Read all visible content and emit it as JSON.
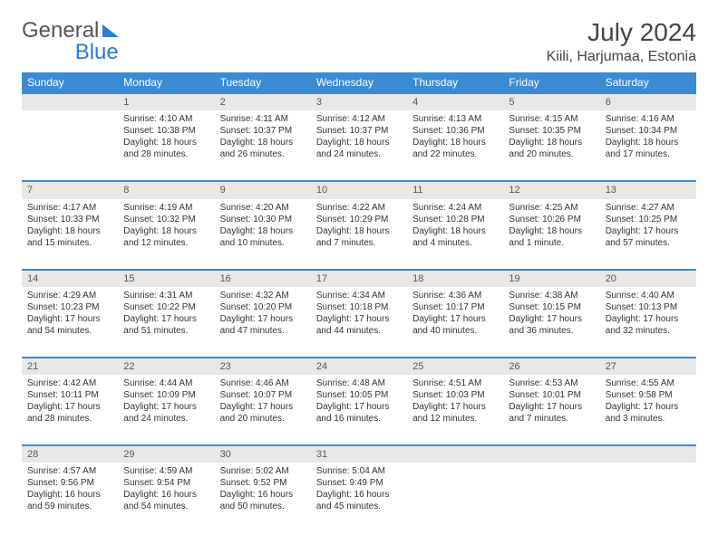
{
  "logo": {
    "part1": "General",
    "part2": "Blue"
  },
  "title": "July 2024",
  "location": "Kiili, Harjumaa, Estonia",
  "day_headers": [
    "Sunday",
    "Monday",
    "Tuesday",
    "Wednesday",
    "Thursday",
    "Friday",
    "Saturday"
  ],
  "colors": {
    "header_bg": "#3b8bd4",
    "header_text": "#ffffff",
    "daynum_bg": "#e8e8e8",
    "border_top": "#3b8bd4",
    "text": "#333333",
    "logo_gray": "#555555",
    "logo_blue": "#2b7cd3"
  },
  "typography": {
    "month_title_size": 28,
    "location_size": 16,
    "header_size": 12,
    "daynum_size": 11,
    "cell_size": 10
  },
  "weeks": [
    {
      "nums": [
        "",
        "1",
        "2",
        "3",
        "4",
        "5",
        "6"
      ],
      "cells": [
        null,
        {
          "sunrise": "Sunrise: 4:10 AM",
          "sunset": "Sunset: 10:38 PM",
          "day1": "Daylight: 18 hours",
          "day2": "and 28 minutes."
        },
        {
          "sunrise": "Sunrise: 4:11 AM",
          "sunset": "Sunset: 10:37 PM",
          "day1": "Daylight: 18 hours",
          "day2": "and 26 minutes."
        },
        {
          "sunrise": "Sunrise: 4:12 AM",
          "sunset": "Sunset: 10:37 PM",
          "day1": "Daylight: 18 hours",
          "day2": "and 24 minutes."
        },
        {
          "sunrise": "Sunrise: 4:13 AM",
          "sunset": "Sunset: 10:36 PM",
          "day1": "Daylight: 18 hours",
          "day2": "and 22 minutes."
        },
        {
          "sunrise": "Sunrise: 4:15 AM",
          "sunset": "Sunset: 10:35 PM",
          "day1": "Daylight: 18 hours",
          "day2": "and 20 minutes."
        },
        {
          "sunrise": "Sunrise: 4:16 AM",
          "sunset": "Sunset: 10:34 PM",
          "day1": "Daylight: 18 hours",
          "day2": "and 17 minutes."
        }
      ]
    },
    {
      "nums": [
        "7",
        "8",
        "9",
        "10",
        "11",
        "12",
        "13"
      ],
      "cells": [
        {
          "sunrise": "Sunrise: 4:17 AM",
          "sunset": "Sunset: 10:33 PM",
          "day1": "Daylight: 18 hours",
          "day2": "and 15 minutes."
        },
        {
          "sunrise": "Sunrise: 4:19 AM",
          "sunset": "Sunset: 10:32 PM",
          "day1": "Daylight: 18 hours",
          "day2": "and 12 minutes."
        },
        {
          "sunrise": "Sunrise: 4:20 AM",
          "sunset": "Sunset: 10:30 PM",
          "day1": "Daylight: 18 hours",
          "day2": "and 10 minutes."
        },
        {
          "sunrise": "Sunrise: 4:22 AM",
          "sunset": "Sunset: 10:29 PM",
          "day1": "Daylight: 18 hours",
          "day2": "and 7 minutes."
        },
        {
          "sunrise": "Sunrise: 4:24 AM",
          "sunset": "Sunset: 10:28 PM",
          "day1": "Daylight: 18 hours",
          "day2": "and 4 minutes."
        },
        {
          "sunrise": "Sunrise: 4:25 AM",
          "sunset": "Sunset: 10:26 PM",
          "day1": "Daylight: 18 hours",
          "day2": "and 1 minute."
        },
        {
          "sunrise": "Sunrise: 4:27 AM",
          "sunset": "Sunset: 10:25 PM",
          "day1": "Daylight: 17 hours",
          "day2": "and 57 minutes."
        }
      ]
    },
    {
      "nums": [
        "14",
        "15",
        "16",
        "17",
        "18",
        "19",
        "20"
      ],
      "cells": [
        {
          "sunrise": "Sunrise: 4:29 AM",
          "sunset": "Sunset: 10:23 PM",
          "day1": "Daylight: 17 hours",
          "day2": "and 54 minutes."
        },
        {
          "sunrise": "Sunrise: 4:31 AM",
          "sunset": "Sunset: 10:22 PM",
          "day1": "Daylight: 17 hours",
          "day2": "and 51 minutes."
        },
        {
          "sunrise": "Sunrise: 4:32 AM",
          "sunset": "Sunset: 10:20 PM",
          "day1": "Daylight: 17 hours",
          "day2": "and 47 minutes."
        },
        {
          "sunrise": "Sunrise: 4:34 AM",
          "sunset": "Sunset: 10:18 PM",
          "day1": "Daylight: 17 hours",
          "day2": "and 44 minutes."
        },
        {
          "sunrise": "Sunrise: 4:36 AM",
          "sunset": "Sunset: 10:17 PM",
          "day1": "Daylight: 17 hours",
          "day2": "and 40 minutes."
        },
        {
          "sunrise": "Sunrise: 4:38 AM",
          "sunset": "Sunset: 10:15 PM",
          "day1": "Daylight: 17 hours",
          "day2": "and 36 minutes."
        },
        {
          "sunrise": "Sunrise: 4:40 AM",
          "sunset": "Sunset: 10:13 PM",
          "day1": "Daylight: 17 hours",
          "day2": "and 32 minutes."
        }
      ]
    },
    {
      "nums": [
        "21",
        "22",
        "23",
        "24",
        "25",
        "26",
        "27"
      ],
      "cells": [
        {
          "sunrise": "Sunrise: 4:42 AM",
          "sunset": "Sunset: 10:11 PM",
          "day1": "Daylight: 17 hours",
          "day2": "and 28 minutes."
        },
        {
          "sunrise": "Sunrise: 4:44 AM",
          "sunset": "Sunset: 10:09 PM",
          "day1": "Daylight: 17 hours",
          "day2": "and 24 minutes."
        },
        {
          "sunrise": "Sunrise: 4:46 AM",
          "sunset": "Sunset: 10:07 PM",
          "day1": "Daylight: 17 hours",
          "day2": "and 20 minutes."
        },
        {
          "sunrise": "Sunrise: 4:48 AM",
          "sunset": "Sunset: 10:05 PM",
          "day1": "Daylight: 17 hours",
          "day2": "and 16 minutes."
        },
        {
          "sunrise": "Sunrise: 4:51 AM",
          "sunset": "Sunset: 10:03 PM",
          "day1": "Daylight: 17 hours",
          "day2": "and 12 minutes."
        },
        {
          "sunrise": "Sunrise: 4:53 AM",
          "sunset": "Sunset: 10:01 PM",
          "day1": "Daylight: 17 hours",
          "day2": "and 7 minutes."
        },
        {
          "sunrise": "Sunrise: 4:55 AM",
          "sunset": "Sunset: 9:58 PM",
          "day1": "Daylight: 17 hours",
          "day2": "and 3 minutes."
        }
      ]
    },
    {
      "nums": [
        "28",
        "29",
        "30",
        "31",
        "",
        "",
        ""
      ],
      "cells": [
        {
          "sunrise": "Sunrise: 4:57 AM",
          "sunset": "Sunset: 9:56 PM",
          "day1": "Daylight: 16 hours",
          "day2": "and 59 minutes."
        },
        {
          "sunrise": "Sunrise: 4:59 AM",
          "sunset": "Sunset: 9:54 PM",
          "day1": "Daylight: 16 hours",
          "day2": "and 54 minutes."
        },
        {
          "sunrise": "Sunrise: 5:02 AM",
          "sunset": "Sunset: 9:52 PM",
          "day1": "Daylight: 16 hours",
          "day2": "and 50 minutes."
        },
        {
          "sunrise": "Sunrise: 5:04 AM",
          "sunset": "Sunset: 9:49 PM",
          "day1": "Daylight: 16 hours",
          "day2": "and 45 minutes."
        },
        null,
        null,
        null
      ]
    }
  ]
}
